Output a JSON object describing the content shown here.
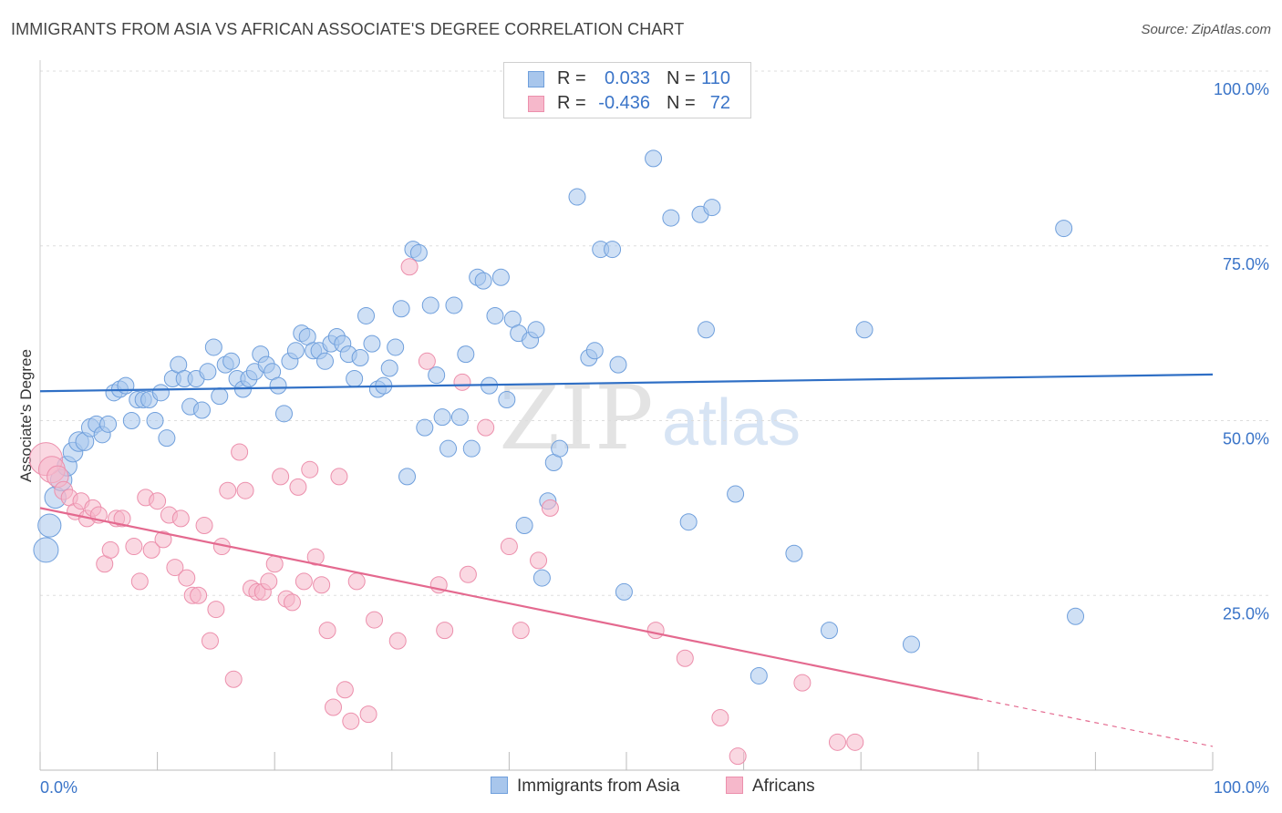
{
  "header": {
    "title": "IMMIGRANTS FROM ASIA VS AFRICAN ASSOCIATE'S DEGREE CORRELATION CHART",
    "source": "Source: ZipAtlas.com"
  },
  "legend": {
    "rows": [
      {
        "r_label": "R =",
        "r_value": "0.033",
        "n_label": "N =",
        "n_value": "110"
      },
      {
        "r_label": "R =",
        "r_value": "-0.436",
        "n_label": "N =",
        "n_value": "72"
      }
    ]
  },
  "bottom_legend": {
    "series1": "Immigrants from Asia",
    "series2": "Africans"
  },
  "watermark": {
    "zip": "ZIP",
    "atlas": "atlas"
  },
  "colors": {
    "blue_fill": "#a8c6ec",
    "blue_stroke": "#6f9fdc",
    "blue_line": "#2f6fc5",
    "pink_fill": "#f6b8cb",
    "pink_stroke": "#ec8fac",
    "pink_line": "#e4698f",
    "tick_label": "#3a74c8",
    "grid": "#dddddd"
  },
  "chart_data": {
    "type": "scatter",
    "title": "IMMIGRANTS FROM ASIA VS AFRICAN ASSOCIATE'S DEGREE CORRELATION CHART",
    "xlabel": "",
    "ylabel": "Associate's Degree",
    "xlim": [
      0,
      100
    ],
    "ylim": [
      0,
      100
    ],
    "x_tick_labels": [
      "0.0%",
      "100.0%"
    ],
    "y_tick_labels": [
      "25.0%",
      "50.0%",
      "75.0%",
      "100.0%"
    ],
    "y_ticks": [
      25,
      50,
      75,
      100
    ],
    "grid": true,
    "legend_position": "top-center",
    "series": [
      {
        "name": "Immigrants from Asia",
        "r": 0.033,
        "n": 110,
        "trend": {
          "x": [
            0,
            100
          ],
          "y": [
            54.2,
            56.6
          ]
        },
        "points": [
          [
            0.5,
            31.5,
            1.5
          ],
          [
            0.8,
            35.0,
            1.4
          ],
          [
            1.3,
            39.0,
            1.3
          ],
          [
            1.8,
            41.5,
            1.3
          ],
          [
            2.3,
            43.5,
            1.2
          ],
          [
            2.8,
            45.5,
            1.2
          ],
          [
            3.3,
            47.0,
            1.2
          ],
          [
            3.8,
            47.0,
            1.1
          ],
          [
            4.3,
            49.0,
            1.1
          ],
          [
            4.8,
            49.5,
            1.0
          ],
          [
            5.3,
            48.0,
            1.0
          ],
          [
            5.8,
            49.5,
            1.0
          ],
          [
            6.3,
            54.0,
            1.0
          ],
          [
            6.8,
            54.5,
            1.0
          ],
          [
            7.3,
            55.0,
            1.0
          ],
          [
            7.8,
            50.0,
            1.0
          ],
          [
            8.3,
            53.0,
            1.0
          ],
          [
            8.8,
            53.0,
            1.0
          ],
          [
            9.3,
            53.0,
            1.0
          ],
          [
            9.8,
            50.0,
            1.0
          ],
          [
            10.3,
            54.0,
            1.0
          ],
          [
            10.8,
            47.5,
            1.0
          ],
          [
            11.3,
            56.0,
            1.0
          ],
          [
            11.8,
            58.0,
            1.0
          ],
          [
            12.3,
            56.0,
            1.0
          ],
          [
            12.8,
            52.0,
            1.0
          ],
          [
            13.3,
            56.0,
            1.0
          ],
          [
            13.8,
            51.5,
            1.0
          ],
          [
            14.3,
            57.0,
            1.0
          ],
          [
            14.8,
            60.5,
            1.0
          ],
          [
            15.3,
            53.5,
            1.0
          ],
          [
            15.8,
            58.0,
            1.0
          ],
          [
            16.3,
            58.5,
            1.0
          ],
          [
            16.8,
            56.0,
            1.0
          ],
          [
            17.3,
            54.5,
            1.0
          ],
          [
            17.8,
            56.0,
            1.0
          ],
          [
            18.3,
            57.0,
            1.0
          ],
          [
            18.8,
            59.5,
            1.0
          ],
          [
            19.3,
            58.0,
            1.0
          ],
          [
            19.8,
            57.0,
            1.0
          ],
          [
            20.3,
            55.0,
            1.0
          ],
          [
            20.8,
            51.0,
            1.0
          ],
          [
            21.3,
            58.5,
            1.0
          ],
          [
            21.8,
            60.0,
            1.0
          ],
          [
            22.3,
            62.5,
            1.0
          ],
          [
            22.8,
            62.0,
            1.0
          ],
          [
            23.3,
            60.0,
            1.0
          ],
          [
            23.8,
            60.0,
            1.0
          ],
          [
            24.3,
            58.5,
            1.0
          ],
          [
            24.8,
            61.0,
            1.0
          ],
          [
            25.3,
            62.0,
            1.0
          ],
          [
            25.8,
            61.0,
            1.0
          ],
          [
            26.3,
            59.5,
            1.0
          ],
          [
            26.8,
            56.0,
            1.0
          ],
          [
            27.3,
            59.0,
            1.0
          ],
          [
            27.8,
            65.0,
            1.0
          ],
          [
            28.3,
            61.0,
            1.0
          ],
          [
            28.8,
            54.5,
            1.0
          ],
          [
            29.3,
            55.0,
            1.0
          ],
          [
            29.8,
            57.5,
            1.0
          ],
          [
            30.3,
            60.5,
            1.0
          ],
          [
            30.8,
            66.0,
            1.0
          ],
          [
            31.3,
            42.0,
            1.0
          ],
          [
            31.8,
            74.5,
            1.0
          ],
          [
            32.3,
            74.0,
            1.0
          ],
          [
            32.8,
            49.0,
            1.0
          ],
          [
            33.3,
            66.5,
            1.0
          ],
          [
            33.8,
            56.5,
            1.0
          ],
          [
            34.3,
            50.5,
            1.0
          ],
          [
            34.8,
            46.0,
            1.0
          ],
          [
            35.3,
            66.5,
            1.0
          ],
          [
            35.8,
            50.5,
            1.0
          ],
          [
            36.3,
            59.5,
            1.0
          ],
          [
            36.8,
            46.0,
            1.0
          ],
          [
            37.3,
            70.5,
            1.0
          ],
          [
            37.8,
            70.0,
            1.0
          ],
          [
            38.3,
            55.0,
            1.0
          ],
          [
            38.8,
            65.0,
            1.0
          ],
          [
            39.3,
            70.5,
            1.0
          ],
          [
            39.8,
            53.0,
            1.0
          ],
          [
            40.3,
            64.5,
            1.0
          ],
          [
            40.8,
            62.5,
            1.0
          ],
          [
            41.3,
            35.0,
            1.0
          ],
          [
            41.8,
            61.5,
            1.0
          ],
          [
            42.3,
            63.0,
            1.0
          ],
          [
            42.8,
            27.5,
            1.0
          ],
          [
            43.3,
            38.5,
            1.0
          ],
          [
            43.8,
            44.0,
            1.0
          ],
          [
            44.3,
            46.0,
            1.0
          ],
          [
            45.8,
            82.0,
            1.0
          ],
          [
            46.8,
            59.0,
            1.0
          ],
          [
            47.3,
            60.0,
            1.0
          ],
          [
            47.8,
            74.5,
            1.0
          ],
          [
            48.8,
            74.5,
            1.0
          ],
          [
            49.3,
            58.0,
            1.0
          ],
          [
            49.8,
            25.5,
            1.0
          ],
          [
            52.3,
            87.5,
            1.0
          ],
          [
            53.8,
            79.0,
            1.0
          ],
          [
            55.3,
            35.5,
            1.0
          ],
          [
            56.3,
            79.5,
            1.0
          ],
          [
            56.8,
            63.0,
            1.0
          ],
          [
            57.3,
            80.5,
            1.0
          ],
          [
            59.3,
            39.5,
            1.0
          ],
          [
            61.3,
            13.5,
            1.0
          ],
          [
            64.3,
            31.0,
            1.0
          ],
          [
            67.3,
            20.0,
            1.0
          ],
          [
            70.3,
            63.0,
            1.0
          ],
          [
            74.3,
            18.0,
            1.0
          ],
          [
            87.3,
            77.5,
            1.0
          ],
          [
            88.3,
            22.0,
            1.0
          ]
        ]
      },
      {
        "name": "Africans",
        "r": -0.436,
        "n": 72,
        "trend": {
          "x": [
            0,
            80
          ],
          "y": [
            37.5,
            10.2
          ],
          "dashed_x": [
            80,
            100
          ],
          "dashed_y": [
            10.2,
            3.4
          ]
        },
        "points": [
          [
            0.5,
            44.5,
            2.0
          ],
          [
            1.0,
            43.0,
            1.6
          ],
          [
            1.5,
            42.0,
            1.3
          ],
          [
            2.0,
            40.0,
            1.1
          ],
          [
            2.5,
            39.0,
            1.0
          ],
          [
            3.0,
            37.0,
            1.0
          ],
          [
            3.5,
            38.5,
            1.0
          ],
          [
            4.0,
            36.0,
            1.0
          ],
          [
            4.5,
            37.5,
            1.0
          ],
          [
            5.0,
            36.5,
            1.0
          ],
          [
            5.5,
            29.5,
            1.0
          ],
          [
            6.0,
            31.5,
            1.0
          ],
          [
            6.5,
            36.0,
            1.0
          ],
          [
            7.0,
            36.0,
            1.0
          ],
          [
            8.0,
            32.0,
            1.0
          ],
          [
            8.5,
            27.0,
            1.0
          ],
          [
            9.0,
            39.0,
            1.0
          ],
          [
            9.5,
            31.5,
            1.0
          ],
          [
            10.0,
            38.5,
            1.0
          ],
          [
            10.5,
            33.0,
            1.0
          ],
          [
            11.0,
            36.5,
            1.0
          ],
          [
            11.5,
            29.0,
            1.0
          ],
          [
            12.0,
            36.0,
            1.0
          ],
          [
            12.5,
            27.5,
            1.0
          ],
          [
            13.0,
            25.0,
            1.0
          ],
          [
            13.5,
            25.0,
            1.0
          ],
          [
            14.0,
            35.0,
            1.0
          ],
          [
            14.5,
            18.5,
            1.0
          ],
          [
            15.0,
            23.0,
            1.0
          ],
          [
            15.5,
            32.0,
            1.0
          ],
          [
            16.0,
            40.0,
            1.0
          ],
          [
            16.5,
            13.0,
            1.0
          ],
          [
            17.0,
            45.5,
            1.0
          ],
          [
            17.5,
            40.0,
            1.0
          ],
          [
            18.0,
            26.0,
            1.0
          ],
          [
            18.5,
            25.5,
            1.0
          ],
          [
            19.0,
            25.5,
            1.0
          ],
          [
            19.5,
            27.0,
            1.0
          ],
          [
            20.0,
            29.5,
            1.0
          ],
          [
            20.5,
            42.0,
            1.0
          ],
          [
            21.0,
            24.5,
            1.0
          ],
          [
            21.5,
            24.0,
            1.0
          ],
          [
            22.0,
            40.5,
            1.0
          ],
          [
            22.5,
            27.0,
            1.0
          ],
          [
            23.0,
            43.0,
            1.0
          ],
          [
            23.5,
            30.5,
            1.0
          ],
          [
            24.0,
            26.5,
            1.0
          ],
          [
            24.5,
            20.0,
            1.0
          ],
          [
            25.0,
            9.0,
            1.0
          ],
          [
            25.5,
            42.0,
            1.0
          ],
          [
            26.0,
            11.5,
            1.0
          ],
          [
            26.5,
            7.0,
            1.0
          ],
          [
            27.0,
            27.0,
            1.0
          ],
          [
            28.0,
            8.0,
            1.0
          ],
          [
            28.5,
            21.5,
            1.0
          ],
          [
            30.5,
            18.5,
            1.0
          ],
          [
            31.5,
            72.0,
            1.0
          ],
          [
            33.0,
            58.5,
            1.0
          ],
          [
            34.0,
            26.5,
            1.0
          ],
          [
            34.5,
            20.0,
            1.0
          ],
          [
            36.0,
            55.5,
            1.0
          ],
          [
            36.5,
            28.0,
            1.0
          ],
          [
            38.0,
            49.0,
            1.0
          ],
          [
            40.0,
            32.0,
            1.0
          ],
          [
            41.0,
            20.0,
            1.0
          ],
          [
            42.5,
            30.0,
            1.0
          ],
          [
            43.5,
            37.5,
            1.0
          ],
          [
            52.5,
            20.0,
            1.0
          ],
          [
            55.0,
            16.0,
            1.0
          ],
          [
            58.0,
            7.5,
            1.0
          ],
          [
            59.5,
            2.0,
            1.0
          ],
          [
            65.0,
            12.5,
            1.0
          ],
          [
            68.0,
            4.0,
            1.0
          ],
          [
            69.5,
            4.0,
            1.0
          ]
        ]
      }
    ]
  }
}
